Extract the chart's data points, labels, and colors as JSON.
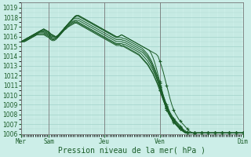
{
  "xlabel": "Pression niveau de la mer( hPa )",
  "bg_color": "#cceee8",
  "line_color": "#1a5c28",
  "ylim": [
    1006,
    1019.5
  ],
  "ylim_display": [
    1006,
    1019
  ],
  "yticks": [
    1006,
    1007,
    1008,
    1009,
    1010,
    1011,
    1012,
    1013,
    1014,
    1015,
    1016,
    1017,
    1018,
    1019
  ],
  "xtick_labels": [
    "Mer",
    "Sam",
    "Jeu",
    "Ven",
    "Dim"
  ],
  "xtick_positions": [
    0,
    16,
    48,
    80,
    128
  ],
  "total_points": 129,
  "lines": [
    [
      1015.5,
      1015.6,
      1015.7,
      1015.8,
      1015.9,
      1016.0,
      1016.1,
      1016.2,
      1016.3,
      1016.4,
      1016.5,
      1016.6,
      1016.7,
      1016.8,
      1016.7,
      1016.6,
      1016.5,
      1016.3,
      1016.2,
      1016.1,
      1016.0,
      1016.1,
      1016.2,
      1016.4,
      1016.6,
      1016.9,
      1017.1,
      1017.3,
      1017.5,
      1017.7,
      1017.9,
      1018.1,
      1018.2,
      1018.2,
      1018.1,
      1018.0,
      1017.9,
      1017.8,
      1017.7,
      1017.6,
      1017.5,
      1017.4,
      1017.3,
      1017.2,
      1017.1,
      1017.0,
      1016.9,
      1016.8,
      1016.7,
      1016.6,
      1016.5,
      1016.4,
      1016.3,
      1016.2,
      1016.1,
      1016.0,
      1016.0,
      1016.1,
      1016.2,
      1016.1,
      1016.0,
      1015.9,
      1015.8,
      1015.7,
      1015.6,
      1015.5,
      1015.4,
      1015.3,
      1015.2,
      1015.1,
      1015.0,
      1014.9,
      1014.8,
      1014.7,
      1014.6,
      1014.5,
      1014.4,
      1014.3,
      1014.2,
      1014.0,
      1013.5,
      1013.0,
      1012.4,
      1011.7,
      1011.0,
      1010.3,
      1009.6,
      1009.0,
      1008.5,
      1008.1,
      1007.8,
      1007.5,
      1007.3,
      1007.1,
      1006.9,
      1006.7,
      1006.5,
      1006.3,
      1006.2,
      1006.1,
      1006.05,
      1006.05,
      1006.1,
      1006.1,
      1006.1,
      1006.1,
      1006.1,
      1006.1,
      1006.1,
      1006.1,
      1006.1,
      1006.1,
      1006.1,
      1006.1,
      1006.1,
      1006.1,
      1006.1,
      1006.1,
      1006.1,
      1006.1,
      1006.1,
      1006.1,
      1006.1,
      1006.1,
      1006.1,
      1006.1,
      1006.1,
      1006.1,
      1006.1
    ],
    [
      1015.5,
      1015.6,
      1015.7,
      1015.8,
      1015.9,
      1016.0,
      1016.1,
      1016.2,
      1016.3,
      1016.4,
      1016.5,
      1016.6,
      1016.7,
      1016.8,
      1016.7,
      1016.6,
      1016.5,
      1016.3,
      1016.2,
      1016.1,
      1016.0,
      1016.1,
      1016.2,
      1016.4,
      1016.6,
      1016.9,
      1017.1,
      1017.3,
      1017.5,
      1017.7,
      1017.9,
      1018.1,
      1018.2,
      1018.2,
      1018.1,
      1018.0,
      1017.9,
      1017.8,
      1017.7,
      1017.6,
      1017.5,
      1017.4,
      1017.3,
      1017.2,
      1017.1,
      1017.0,
      1016.9,
      1016.8,
      1016.7,
      1016.6,
      1016.5,
      1016.4,
      1016.3,
      1016.2,
      1016.1,
      1016.0,
      1016.0,
      1016.1,
      1016.2,
      1016.1,
      1016.0,
      1015.9,
      1015.8,
      1015.7,
      1015.6,
      1015.5,
      1015.4,
      1015.3,
      1015.2,
      1015.1,
      1015.0,
      1014.9,
      1014.8,
      1014.7,
      1014.6,
      1014.3,
      1013.9,
      1013.4,
      1012.8,
      1012.1,
      1011.4,
      1010.7,
      1010.0,
      1009.4,
      1008.9,
      1008.5,
      1008.1,
      1007.8,
      1007.5,
      1007.3,
      1007.1,
      1006.9,
      1006.7,
      1006.5,
      1006.3,
      1006.2,
      1006.1,
      1006.1,
      1006.1,
      1006.1,
      1006.1,
      1006.1,
      1006.1,
      1006.1,
      1006.1,
      1006.1,
      1006.1,
      1006.1,
      1006.1,
      1006.1,
      1006.1,
      1006.1,
      1006.1,
      1006.1,
      1006.1,
      1006.1,
      1006.1,
      1006.1,
      1006.1,
      1006.1,
      1006.1,
      1006.1,
      1006.1,
      1006.1,
      1006.1,
      1006.1,
      1006.1,
      1006.1,
      1006.1
    ],
    [
      1015.5,
      1015.6,
      1015.7,
      1015.8,
      1015.9,
      1016.0,
      1016.1,
      1016.2,
      1016.3,
      1016.4,
      1016.5,
      1016.6,
      1016.7,
      1016.7,
      1016.6,
      1016.5,
      1016.4,
      1016.2,
      1016.1,
      1016.0,
      1016.0,
      1016.1,
      1016.3,
      1016.5,
      1016.7,
      1016.9,
      1017.1,
      1017.3,
      1017.5,
      1017.7,
      1017.9,
      1018.0,
      1018.1,
      1018.1,
      1018.0,
      1017.9,
      1017.8,
      1017.7,
      1017.6,
      1017.5,
      1017.4,
      1017.3,
      1017.2,
      1017.1,
      1017.0,
      1016.9,
      1016.8,
      1016.7,
      1016.6,
      1016.5,
      1016.4,
      1016.3,
      1016.2,
      1016.1,
      1016.0,
      1015.9,
      1015.9,
      1015.9,
      1015.9,
      1015.8,
      1015.8,
      1015.7,
      1015.6,
      1015.5,
      1015.4,
      1015.3,
      1015.2,
      1015.1,
      1015.0,
      1014.9,
      1014.8,
      1014.6,
      1014.4,
      1014.2,
      1013.9,
      1013.6,
      1013.2,
      1012.8,
      1012.3,
      1011.8,
      1011.2,
      1010.6,
      1010.0,
      1009.5,
      1009.0,
      1008.6,
      1008.2,
      1007.9,
      1007.6,
      1007.4,
      1007.2,
      1007.0,
      1006.8,
      1006.6,
      1006.4,
      1006.3,
      1006.2,
      1006.1,
      1006.1,
      1006.1,
      1006.1,
      1006.1,
      1006.1,
      1006.1,
      1006.1,
      1006.1,
      1006.1,
      1006.1,
      1006.1,
      1006.1,
      1006.1,
      1006.1,
      1006.1,
      1006.1,
      1006.1,
      1006.1,
      1006.1,
      1006.1,
      1006.1,
      1006.1,
      1006.1,
      1006.1,
      1006.1,
      1006.1,
      1006.1,
      1006.1,
      1006.1,
      1006.1,
      1006.1
    ],
    [
      1015.5,
      1015.6,
      1015.7,
      1015.8,
      1015.9,
      1016.0,
      1016.1,
      1016.2,
      1016.3,
      1016.4,
      1016.5,
      1016.6,
      1016.6,
      1016.6,
      1016.5,
      1016.4,
      1016.3,
      1016.1,
      1016.0,
      1016.0,
      1016.0,
      1016.1,
      1016.3,
      1016.5,
      1016.7,
      1016.9,
      1017.1,
      1017.3,
      1017.5,
      1017.6,
      1017.8,
      1017.9,
      1017.9,
      1017.9,
      1017.8,
      1017.7,
      1017.6,
      1017.5,
      1017.4,
      1017.3,
      1017.2,
      1017.1,
      1017.0,
      1016.9,
      1016.8,
      1016.7,
      1016.6,
      1016.5,
      1016.4,
      1016.3,
      1016.2,
      1016.1,
      1016.0,
      1015.9,
      1015.8,
      1015.7,
      1015.7,
      1015.7,
      1015.7,
      1015.6,
      1015.6,
      1015.5,
      1015.4,
      1015.3,
      1015.2,
      1015.1,
      1015.0,
      1014.9,
      1014.8,
      1014.7,
      1014.6,
      1014.4,
      1014.2,
      1014.0,
      1013.7,
      1013.4,
      1013.0,
      1012.6,
      1012.1,
      1011.6,
      1011.0,
      1010.4,
      1009.8,
      1009.3,
      1008.8,
      1008.4,
      1008.0,
      1007.7,
      1007.4,
      1007.2,
      1007.0,
      1006.8,
      1006.6,
      1006.5,
      1006.3,
      1006.2,
      1006.1,
      1006.1,
      1006.1,
      1006.1,
      1006.1,
      1006.1,
      1006.1,
      1006.1,
      1006.1,
      1006.1,
      1006.1,
      1006.1,
      1006.1,
      1006.1,
      1006.1,
      1006.1,
      1006.1,
      1006.1,
      1006.1,
      1006.1,
      1006.1,
      1006.1,
      1006.1,
      1006.1,
      1006.1,
      1006.1,
      1006.1,
      1006.1,
      1006.1,
      1006.1,
      1006.1,
      1006.1,
      1006.1
    ],
    [
      1015.5,
      1015.5,
      1015.6,
      1015.7,
      1015.8,
      1015.9,
      1016.0,
      1016.1,
      1016.2,
      1016.3,
      1016.4,
      1016.5,
      1016.5,
      1016.5,
      1016.4,
      1016.3,
      1016.2,
      1016.0,
      1015.9,
      1015.9,
      1015.9,
      1016.0,
      1016.2,
      1016.4,
      1016.6,
      1016.8,
      1017.0,
      1017.2,
      1017.4,
      1017.5,
      1017.6,
      1017.7,
      1017.7,
      1017.7,
      1017.6,
      1017.5,
      1017.4,
      1017.3,
      1017.2,
      1017.1,
      1017.0,
      1016.9,
      1016.8,
      1016.7,
      1016.6,
      1016.5,
      1016.4,
      1016.3,
      1016.2,
      1016.1,
      1016.0,
      1015.9,
      1015.8,
      1015.7,
      1015.6,
      1015.5,
      1015.5,
      1015.5,
      1015.5,
      1015.4,
      1015.4,
      1015.3,
      1015.2,
      1015.1,
      1015.0,
      1014.9,
      1014.8,
      1014.7,
      1014.6,
      1014.5,
      1014.4,
      1014.2,
      1014.0,
      1013.8,
      1013.5,
      1013.2,
      1012.8,
      1012.4,
      1011.9,
      1011.4,
      1010.8,
      1010.2,
      1009.6,
      1009.1,
      1008.6,
      1008.2,
      1007.8,
      1007.5,
      1007.2,
      1007.0,
      1006.8,
      1006.6,
      1006.5,
      1006.3,
      1006.2,
      1006.1,
      1006.1,
      1006.1,
      1006.1,
      1006.1,
      1006.1,
      1006.1,
      1006.1,
      1006.1,
      1006.1,
      1006.1,
      1006.1,
      1006.1,
      1006.1,
      1006.1,
      1006.1,
      1006.1,
      1006.1,
      1006.1,
      1006.1,
      1006.1,
      1006.1,
      1006.1,
      1006.1,
      1006.1,
      1006.1,
      1006.1,
      1006.1,
      1006.1,
      1006.1,
      1006.1,
      1006.1,
      1006.1,
      1006.1
    ],
    [
      1015.5,
      1015.5,
      1015.6,
      1015.7,
      1015.8,
      1015.9,
      1016.0,
      1016.1,
      1016.2,
      1016.3,
      1016.4,
      1016.4,
      1016.4,
      1016.4,
      1016.3,
      1016.2,
      1016.1,
      1015.9,
      1015.8,
      1015.8,
      1015.9,
      1016.0,
      1016.2,
      1016.4,
      1016.6,
      1016.8,
      1017.0,
      1017.1,
      1017.3,
      1017.4,
      1017.5,
      1017.6,
      1017.6,
      1017.5,
      1017.4,
      1017.3,
      1017.2,
      1017.1,
      1017.0,
      1016.9,
      1016.8,
      1016.7,
      1016.6,
      1016.5,
      1016.4,
      1016.3,
      1016.2,
      1016.1,
      1016.0,
      1015.9,
      1015.8,
      1015.7,
      1015.6,
      1015.5,
      1015.4,
      1015.3,
      1015.3,
      1015.3,
      1015.3,
      1015.2,
      1015.2,
      1015.1,
      1015.0,
      1014.9,
      1014.8,
      1014.7,
      1014.6,
      1014.5,
      1014.4,
      1014.3,
      1014.1,
      1013.9,
      1013.7,
      1013.5,
      1013.2,
      1012.9,
      1012.6,
      1012.2,
      1011.8,
      1011.3,
      1010.8,
      1010.3,
      1009.7,
      1009.2,
      1008.7,
      1008.3,
      1007.9,
      1007.6,
      1007.3,
      1007.1,
      1006.9,
      1006.7,
      1006.5,
      1006.4,
      1006.2,
      1006.1,
      1006.1,
      1006.1,
      1006.1,
      1006.1,
      1006.1,
      1006.1,
      1006.1,
      1006.1,
      1006.1,
      1006.1,
      1006.1,
      1006.1,
      1006.1,
      1006.1,
      1006.1,
      1006.1,
      1006.1,
      1006.1,
      1006.1,
      1006.1,
      1006.1,
      1006.1,
      1006.1,
      1006.1,
      1006.1,
      1006.1,
      1006.1,
      1006.1,
      1006.1,
      1006.1,
      1006.1,
      1006.1,
      1006.1
    ],
    [
      1015.5,
      1015.5,
      1015.5,
      1015.6,
      1015.7,
      1015.8,
      1015.9,
      1016.0,
      1016.1,
      1016.2,
      1016.3,
      1016.3,
      1016.3,
      1016.3,
      1016.2,
      1016.1,
      1016.0,
      1015.8,
      1015.7,
      1015.7,
      1015.8,
      1015.9,
      1016.1,
      1016.3,
      1016.5,
      1016.7,
      1016.9,
      1017.0,
      1017.2,
      1017.3,
      1017.4,
      1017.5,
      1017.5,
      1017.4,
      1017.3,
      1017.2,
      1017.1,
      1017.0,
      1016.9,
      1016.8,
      1016.7,
      1016.6,
      1016.5,
      1016.4,
      1016.3,
      1016.2,
      1016.1,
      1016.0,
      1015.9,
      1015.8,
      1015.7,
      1015.6,
      1015.5,
      1015.4,
      1015.3,
      1015.2,
      1015.2,
      1015.2,
      1015.1,
      1015.1,
      1015.0,
      1014.9,
      1014.8,
      1014.7,
      1014.6,
      1014.5,
      1014.4,
      1014.3,
      1014.2,
      1014.0,
      1013.8,
      1013.6,
      1013.4,
      1013.2,
      1012.9,
      1012.6,
      1012.3,
      1011.9,
      1011.5,
      1011.0,
      1010.5,
      1010.0,
      1009.5,
      1009.0,
      1008.5,
      1008.1,
      1007.8,
      1007.5,
      1007.3,
      1007.1,
      1006.9,
      1006.7,
      1006.5,
      1006.4,
      1006.2,
      1006.1,
      1006.1,
      1006.1,
      1006.1,
      1006.1,
      1006.1,
      1006.1,
      1006.1,
      1006.1,
      1006.1,
      1006.1,
      1006.1,
      1006.1,
      1006.1,
      1006.1,
      1006.1,
      1006.1,
      1006.1,
      1006.1,
      1006.1,
      1006.1,
      1006.1,
      1006.1,
      1006.1,
      1006.1,
      1006.1,
      1006.1,
      1006.1,
      1006.1,
      1006.1,
      1006.1,
      1006.1,
      1006.1,
      1006.1
    ],
    [
      1015.5,
      1015.5,
      1015.5,
      1015.6,
      1015.7,
      1015.8,
      1015.9,
      1016.0,
      1016.1,
      1016.2,
      1016.2,
      1016.2,
      1016.2,
      1016.2,
      1016.1,
      1016.0,
      1015.9,
      1015.7,
      1015.6,
      1015.6,
      1015.7,
      1015.9,
      1016.1,
      1016.3,
      1016.5,
      1016.7,
      1016.8,
      1017.0,
      1017.1,
      1017.2,
      1017.3,
      1017.4,
      1017.4,
      1017.3,
      1017.2,
      1017.1,
      1017.0,
      1016.9,
      1016.8,
      1016.7,
      1016.6,
      1016.5,
      1016.4,
      1016.3,
      1016.2,
      1016.1,
      1016.0,
      1015.9,
      1015.8,
      1015.7,
      1015.6,
      1015.5,
      1015.4,
      1015.3,
      1015.2,
      1015.1,
      1015.1,
      1015.1,
      1015.0,
      1015.0,
      1014.9,
      1014.8,
      1014.7,
      1014.6,
      1014.5,
      1014.4,
      1014.3,
      1014.2,
      1014.1,
      1013.9,
      1013.7,
      1013.5,
      1013.3,
      1013.1,
      1012.8,
      1012.5,
      1012.2,
      1011.8,
      1011.4,
      1011.0,
      1010.5,
      1010.0,
      1009.5,
      1009.0,
      1008.6,
      1008.2,
      1007.9,
      1007.6,
      1007.3,
      1007.1,
      1006.9,
      1006.7,
      1006.5,
      1006.4,
      1006.2,
      1006.1,
      1006.1,
      1006.1,
      1006.1,
      1006.1,
      1006.1,
      1006.1,
      1006.1,
      1006.1,
      1006.1,
      1006.1,
      1006.1,
      1006.1,
      1006.1,
      1006.1,
      1006.1,
      1006.1,
      1006.1,
      1006.1,
      1006.1,
      1006.1,
      1006.1,
      1006.1,
      1006.1,
      1006.1,
      1006.1,
      1006.1,
      1006.1,
      1006.1,
      1006.1,
      1006.1,
      1006.1,
      1006.1,
      1006.1
    ]
  ],
  "straight_line_starts": [
    [
      0,
      1015.5,
      128,
      1006.1
    ],
    [
      0,
      1015.5,
      128,
      1006.1
    ],
    [
      12,
      1016.0,
      128,
      1006.1
    ],
    [
      16,
      1016.1,
      128,
      1006.1
    ]
  ],
  "marker_style": "+",
  "marker_color": "#1a5c28",
  "marker_indices": [
    80,
    84,
    88,
    92,
    96,
    100,
    104,
    108,
    112,
    116,
    120,
    124,
    128
  ],
  "vline_color": "#777777",
  "vline_positions": [
    0,
    16,
    48,
    80,
    128
  ],
  "tick_fontsize": 5.5,
  "xlabel_fontsize": 7,
  "grid_minor_color": "#aad8d0",
  "grid_major_color": "#99ccc4"
}
